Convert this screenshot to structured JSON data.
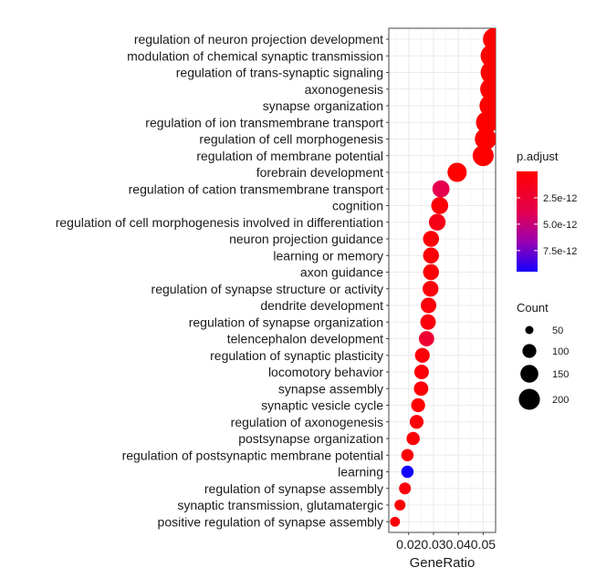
{
  "chart_data": {
    "type": "scatter",
    "xlabel": "GeneRatio",
    "xlim": [
      0.012,
      0.055
    ],
    "xticks": [
      0.02,
      0.03,
      0.04,
      0.05
    ],
    "xtick_labels": [
      "0.02",
      "0.03",
      "0.04",
      "0.05"
    ],
    "grid": true,
    "legend_placement": "right",
    "color_legend": {
      "title": "p.adjust",
      "min": 0.0,
      "max": 9.5e-12,
      "ticks": [
        2.5e-12,
        5e-12,
        7.5e-12
      ],
      "tick_labels": [
        "2.5e-12",
        "5.0e-12",
        "7.5e-12"
      ],
      "low_color": "#ff0000",
      "high_color": "#0000ff"
    },
    "size_legend": {
      "title": "Count",
      "values": [
        50,
        100,
        150,
        200
      ],
      "labels": [
        "50",
        "100",
        "150",
        "200"
      ]
    },
    "categories": [
      "regulation of neuron projection development",
      "modulation of chemical synaptic transmission",
      "regulation of trans-synaptic signaling",
      "axonogenesis",
      "synapse organization",
      "regulation of ion transmembrane transport",
      "regulation of cell morphogenesis",
      "regulation of membrane potential",
      "forebrain development",
      "regulation of cation transmembrane transport",
      "cognition",
      "regulation of cell morphogenesis involved in differentiation",
      "neuron projection guidance",
      "learning or memory",
      "axon guidance",
      "regulation of synapse structure or activity",
      "dendrite development",
      "regulation of synapse organization",
      "telencephalon development",
      "regulation of synaptic plasticity",
      "locomotory behavior",
      "synapse assembly",
      "synaptic vesicle cycle",
      "regulation of axonogenesis",
      "postsynapse organization",
      "regulation of postsynaptic membrane potential",
      "learning",
      "regulation of synapse assembly",
      "synaptic transmission, glutamatergic",
      "positive regulation of synapse assembly"
    ],
    "series": [
      {
        "gene_ratio": [
          0.0545,
          0.0535,
          0.0535,
          0.0533,
          0.053,
          0.0515,
          0.051,
          0.05,
          0.0395,
          0.033,
          0.0325,
          0.0315,
          0.029,
          0.029,
          0.029,
          0.0288,
          0.028,
          0.0278,
          0.0272,
          0.0255,
          0.0252,
          0.025,
          0.0238,
          0.0232,
          0.0218,
          0.0195,
          0.0195,
          0.0185,
          0.0165,
          0.0145
        ],
        "count": [
          230,
          225,
          225,
          222,
          220,
          212,
          210,
          200,
          170,
          140,
          138,
          134,
          125,
          124,
          124,
          123,
          120,
          118,
          116,
          110,
          108,
          106,
          101,
          99,
          93,
          84,
          83,
          79,
          71,
          62
        ],
        "p_adjust": [
          1e-16,
          2e-16,
          2e-16,
          2e-16,
          3e-16,
          5e-16,
          6e-16,
          8e-16,
          5e-14,
          3.8e-12,
          4e-13,
          1.2e-12,
          4e-13,
          3e-13,
          3e-13,
          5e-13,
          5e-13,
          7e-13,
          2.4e-12,
          4e-13,
          4e-13,
          4e-13,
          2e-13,
          4e-13,
          4e-13,
          4e-13,
          9.5e-12,
          6e-13,
          4e-13,
          4e-13
        ]
      }
    ]
  }
}
